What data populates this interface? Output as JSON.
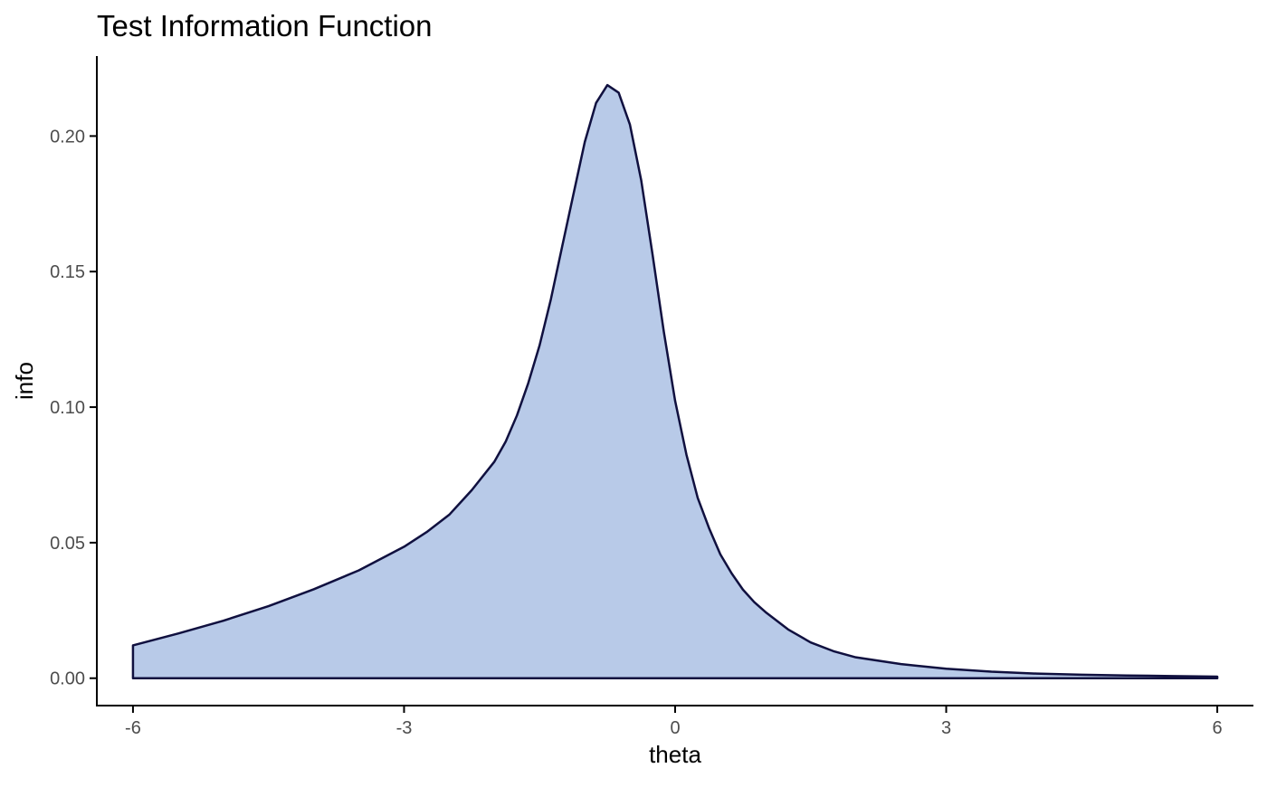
{
  "colors": {
    "fill": "#b8cae8",
    "line": "#10103f",
    "axis": "#000000",
    "tick_text": "#4d4d4d"
  },
  "chart_data": {
    "type": "area",
    "title": "Test Information Function",
    "xlabel": "theta",
    "ylabel": "info",
    "xlim": [
      -6.4,
      6.4
    ],
    "ylim": [
      -0.0101,
      0.2295
    ],
    "grid": false,
    "legend": "none",
    "x_ticks": [
      -6,
      -3,
      0,
      3,
      6
    ],
    "x_tick_labels": [
      "-6",
      "-3",
      "0",
      "3",
      "6"
    ],
    "y_ticks": [
      0,
      0.05,
      0.1,
      0.15,
      0.2
    ],
    "y_tick_labels": [
      "0.00",
      "0.05",
      "0.10",
      "0.15",
      "0.20"
    ],
    "series": [
      {
        "x": [
          -6,
          -5.5,
          -5,
          -4.5,
          -4,
          -3.5,
          -3,
          -2.75,
          -2.5,
          -2.25,
          -2,
          -1.875,
          -1.75,
          -1.625,
          -1.5,
          -1.375,
          -1.25,
          -1.125,
          -1,
          -0.875,
          -0.75,
          -0.625,
          -0.5,
          -0.375,
          -0.25,
          -0.125,
          0,
          0.125,
          0.25,
          0.375,
          0.5,
          0.625,
          0.75,
          0.875,
          1,
          1.25,
          1.5,
          1.75,
          2,
          2.5,
          3,
          3.5,
          4,
          4.5,
          5,
          5.5,
          6
        ],
        "y": [
          0.0121,
          0.0165,
          0.0212,
          0.0266,
          0.0328,
          0.0398,
          0.0485,
          0.0539,
          0.0603,
          0.0694,
          0.0799,
          0.0873,
          0.097,
          0.1089,
          0.1228,
          0.1398,
          0.1593,
          0.1786,
          0.1978,
          0.2122,
          0.2188,
          0.216,
          0.2042,
          0.1836,
          0.1563,
          0.1278,
          0.1023,
          0.0825,
          0.0665,
          0.0554,
          0.0457,
          0.0387,
          0.0327,
          0.0281,
          0.0244,
          0.018,
          0.0132,
          0.01,
          0.0077,
          0.0052,
          0.0035,
          0.0024,
          0.0017,
          0.0013,
          0.001,
          0.0008,
          0.0006
        ]
      }
    ]
  }
}
